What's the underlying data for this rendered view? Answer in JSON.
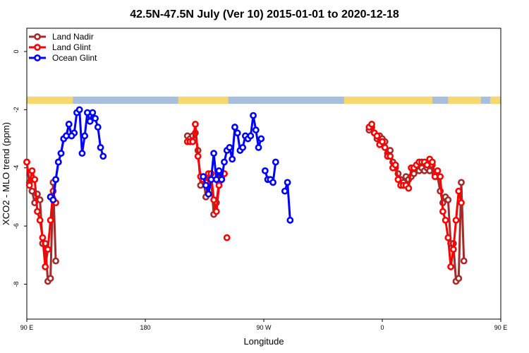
{
  "chart_data": {
    "type": "line",
    "title": "42.5N-47.5N July (Ver 10)   2015-01-01 to 2020-12-18",
    "xlabel": "Longitude",
    "ylabel": "XCO2 - MLO trend (ppm)",
    "xlim": [
      90,
      450
    ],
    "ylim": [
      -9.2,
      0.8
    ],
    "x_ticks": [
      {
        "value": 90,
        "label": "90 E"
      },
      {
        "value": 180,
        "label": "180"
      },
      {
        "value": 270,
        "label": "90 W"
      },
      {
        "value": 360,
        "label": "0"
      },
      {
        "value": 450,
        "label": "90 E"
      },
      {
        "value": 540,
        "label": "180"
      }
    ],
    "y_ticks": [
      {
        "value": 0,
        "label": "0"
      },
      {
        "value": -2,
        "label": "-2"
      },
      {
        "value": -4,
        "label": "-4"
      },
      {
        "value": -6,
        "label": "-6"
      },
      {
        "value": -8,
        "label": "-8"
      }
    ],
    "grid": false,
    "legend_position": "top-left",
    "land_sea_band": {
      "land_color": "#f7d774",
      "ocean_color": "#a8bfdc",
      "land_ranges": [
        [
          90,
          125
        ],
        [
          205,
          243
        ],
        [
          331,
          398
        ],
        [
          410,
          435
        ],
        [
          442,
          450
        ]
      ],
      "y_range": [
        -1.55,
        -1.8
      ]
    },
    "series": [
      {
        "name": "Land Nadir",
        "color": "#a52a2a",
        "segments": [
          [
            [
              90,
              -3.8
            ],
            [
              92,
              -4.5
            ],
            [
              94,
              -4.8
            ],
            [
              96,
              -5.2
            ],
            [
              98,
              -4.9
            ],
            [
              100,
              -5.1
            ],
            [
              102,
              -6.6
            ],
            [
              104,
              -6.6
            ],
            [
              106,
              -7.9
            ],
            [
              108,
              -7.8
            ],
            [
              110,
              -4.5
            ],
            [
              112,
              -7.2
            ]
          ],
          [
            [
              212,
              -2.9
            ],
            [
              214,
              -3.0
            ],
            [
              216,
              -2.9
            ],
            [
              218,
              -2.8
            ],
            [
              220,
              -3.4
            ],
            [
              222,
              -4.6
            ],
            [
              224,
              -4.3
            ],
            [
              226,
              -5.0
            ],
            [
              228,
              -4.6
            ],
            [
              230,
              -4.4
            ],
            [
              232,
              -5.6
            ],
            [
              234,
              -5.2
            ],
            [
              236,
              -4.5
            ],
            [
              238,
              -4.3
            ],
            [
              240,
              -4.2
            ]
          ],
          [
            [
              350,
              -2.7
            ],
            [
              352,
              -2.6
            ],
            [
              354,
              -2.8
            ],
            [
              356,
              -3.0
            ],
            [
              358,
              -2.9
            ],
            [
              360,
              -3.0
            ],
            [
              362,
              -3.1
            ],
            [
              364,
              -3.5
            ],
            [
              366,
              -3.4
            ],
            [
              368,
              -3.8
            ],
            [
              370,
              -4.0
            ],
            [
              372,
              -4.2
            ],
            [
              374,
              -4.4
            ],
            [
              376,
              -4.5
            ],
            [
              378,
              -4.3
            ],
            [
              380,
              -4.4
            ],
            [
              382,
              -4.3
            ],
            [
              384,
              -4.2
            ],
            [
              386,
              -4.0
            ],
            [
              388,
              -4.1
            ],
            [
              390,
              -4.0
            ],
            [
              392,
              -4.1
            ],
            [
              394,
              -4.0
            ],
            [
              396,
              -4.1
            ],
            [
              398,
              -3.9
            ],
            [
              400,
              -4.2
            ],
            [
              402,
              -4.3
            ],
            [
              404,
              -4.8
            ],
            [
              406,
              -5.2
            ],
            [
              408,
              -5.0
            ],
            [
              410,
              -5.1
            ],
            [
              412,
              -6.6
            ],
            [
              414,
              -6.6
            ],
            [
              416,
              -7.9
            ],
            [
              418,
              -7.8
            ],
            [
              420,
              -4.5
            ],
            [
              422,
              -7.2
            ]
          ]
        ]
      },
      {
        "name": "Land Glint",
        "color": "#ff0000",
        "segments": [
          [
            [
              90,
              -3.8
            ],
            [
              92,
              -4.6
            ],
            [
              94,
              -4.1
            ],
            [
              96,
              -4.4
            ],
            [
              98,
              -5.5
            ],
            [
              100,
              -5.8
            ],
            [
              102,
              -6.4
            ],
            [
              104,
              -7.4
            ],
            [
              106,
              -6.8
            ],
            [
              108,
              -5.8
            ],
            [
              110,
              -4.8
            ],
            [
              112,
              -5.2
            ]
          ],
          [
            [
              212,
              -3.1
            ],
            [
              214,
              -3.1
            ],
            [
              216,
              -3.1
            ],
            [
              218,
              -2.5
            ],
            [
              220,
              -3.6
            ],
            [
              222,
              -4.3
            ],
            [
              224,
              -4.4
            ],
            [
              226,
              -4.5
            ],
            [
              228,
              -4.2
            ],
            [
              230,
              -4.2
            ],
            [
              232,
              -5.1
            ],
            [
              234,
              -5.5
            ],
            [
              236,
              -4.6
            ],
            [
              238,
              -4.4
            ],
            [
              240,
              -4.2
            ]
          ],
          [
            [
              242,
              -6.4
            ]
          ],
          [
            [
              350,
              -2.6
            ],
            [
              352,
              -2.5
            ],
            [
              354,
              -2.8
            ],
            [
              356,
              -2.9
            ],
            [
              358,
              -3.2
            ],
            [
              360,
              -3.1
            ],
            [
              362,
              -3.3
            ],
            [
              364,
              -3.6
            ],
            [
              366,
              -3.6
            ],
            [
              368,
              -4.0
            ],
            [
              370,
              -3.9
            ],
            [
              372,
              -4.4
            ],
            [
              374,
              -4.6
            ],
            [
              376,
              -4.6
            ],
            [
              378,
              -4.6
            ],
            [
              380,
              -4.7
            ],
            [
              382,
              -4.0
            ],
            [
              384,
              -4.0
            ],
            [
              386,
              -3.9
            ],
            [
              388,
              -3.8
            ],
            [
              390,
              -3.8
            ],
            [
              392,
              -3.8
            ],
            [
              394,
              -3.9
            ],
            [
              396,
              -3.7
            ],
            [
              398,
              -3.8
            ],
            [
              400,
              -4.3
            ],
            [
              402,
              -4.1
            ],
            [
              404,
              -4.3
            ],
            [
              406,
              -5.5
            ],
            [
              408,
              -5.8
            ],
            [
              410,
              -6.4
            ],
            [
              412,
              -7.4
            ],
            [
              414,
              -6.8
            ],
            [
              416,
              -5.8
            ],
            [
              418,
              -4.8
            ],
            [
              420,
              -5.2
            ]
          ]
        ]
      },
      {
        "name": "Ocean Glint",
        "color": "#0000ff",
        "segments": [
          [
            [
              108,
              -5.0
            ],
            [
              110,
              -5.1
            ],
            [
              112,
              -4.4
            ],
            [
              114,
              -3.8
            ],
            [
              116,
              -3.5
            ],
            [
              118,
              -3.0
            ],
            [
              120,
              -2.9
            ],
            [
              122,
              -2.5
            ],
            [
              124,
              -2.9
            ],
            [
              126,
              -2.8
            ],
            [
              128,
              -2.1
            ],
            [
              130,
              -2.0
            ],
            [
              132,
              -3.5
            ],
            [
              134,
              -2.9
            ],
            [
              136,
              -2.1
            ],
            [
              138,
              -2.4
            ],
            [
              140,
              -2.1
            ],
            [
              142,
              -2.3
            ],
            [
              144,
              -2.6
            ],
            [
              146,
              -3.3
            ],
            [
              148,
              -3.6
            ]
          ],
          [
            [
              224,
              -4.3
            ],
            [
              226,
              -4.6
            ],
            [
              228,
              -4.9
            ],
            [
              230,
              -4.4
            ],
            [
              232,
              -3.5
            ],
            [
              234,
              -4.4
            ],
            [
              236,
              -4.1
            ],
            [
              238,
              -4.4
            ],
            [
              240,
              -3.8
            ],
            [
              242,
              -3.4
            ],
            [
              244,
              -3.3
            ],
            [
              246,
              -3.7
            ],
            [
              248,
              -2.6
            ],
            [
              250,
              -2.8
            ],
            [
              252,
              -3.4
            ],
            [
              254,
              -3.3
            ],
            [
              256,
              -2.9
            ],
            [
              258,
              -3.0
            ],
            [
              260,
              -2.9
            ],
            [
              262,
              -2.2
            ],
            [
              264,
              -2.7
            ],
            [
              266,
              -3.3
            ],
            [
              268,
              -3.0
            ]
          ],
          [
            [
              271,
              -4.1
            ],
            [
              273,
              -4.4
            ],
            [
              275,
              -4.4
            ],
            [
              277,
              -4.5
            ],
            [
              279,
              -3.8
            ]
          ],
          [
            [
              286,
              -4.8
            ],
            [
              288,
              -4.5
            ],
            [
              290,
              -5.8
            ]
          ],
          [
            [
              108,
              -5.0
            ],
            [
              110,
              -5.1
            ],
            [
              112,
              -4.4
            ],
            [
              114,
              -3.8
            ],
            [
              116,
              -3.5
            ],
            [
              118,
              -3.0
            ],
            [
              120,
              -2.9
            ],
            [
              122,
              -2.5
            ],
            [
              124,
              -2.9
            ]
          ]
        ]
      }
    ]
  }
}
